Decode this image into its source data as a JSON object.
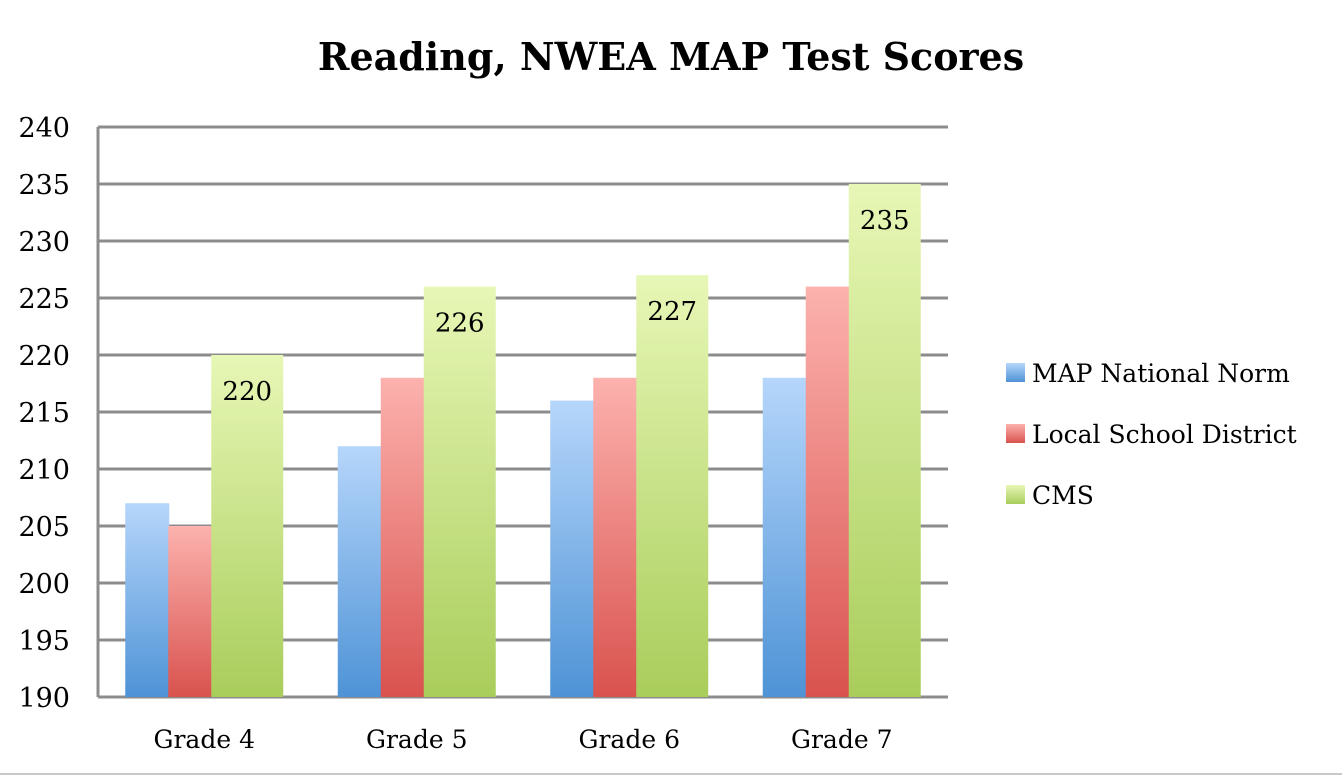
{
  "chart_data": {
    "type": "bar",
    "title": "Reading, NWEA MAP Test Scores",
    "xlabel": "",
    "ylabel": "",
    "categories": [
      "Grade 4",
      "Grade 5",
      "Grade 6",
      "Grade 7"
    ],
    "ylim": [
      190,
      240
    ],
    "ytick_step": 5,
    "grid": true,
    "legend_position": "right",
    "series": [
      {
        "name": "MAP National Norm",
        "values": [
          207,
          212,
          216,
          218
        ],
        "color": "#5b9bd5",
        "labels_shown": false
      },
      {
        "name": "Local School District",
        "values": [
          205,
          218,
          218,
          226
        ],
        "color": "#e05a55",
        "labels_shown": false
      },
      {
        "name": "CMS",
        "values": [
          220,
          226,
          227,
          235
        ],
        "color": "#b4d86a",
        "labels_shown": true
      }
    ]
  }
}
